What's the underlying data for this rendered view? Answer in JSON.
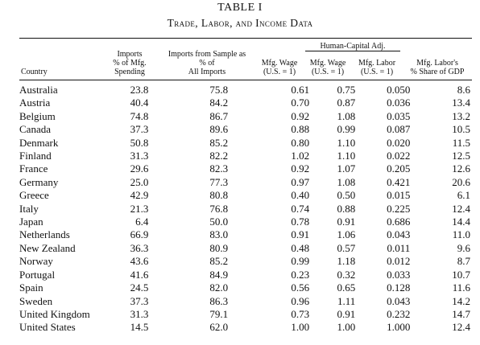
{
  "table": {
    "number": "TABLE I",
    "title": "Trade, Labor, and Income Data",
    "group_header": "Human-Capital Adj.",
    "headers": {
      "country": "Country",
      "imports_pct": [
        "Imports",
        "% of Mfg.",
        "Spending"
      ],
      "imports_sample": [
        "Imports from Sample as",
        "% of",
        "All Imports"
      ],
      "mfg_wage": [
        "Mfg. Wage",
        "(U.S. = 1)"
      ],
      "adj_wage": [
        "Mfg. Wage",
        "(U.S. = 1)"
      ],
      "adj_labor": [
        "Mfg. Labor",
        "(U.S. = 1)"
      ],
      "labor_share": [
        "Mfg. Labor's",
        "% Share of GDP"
      ]
    },
    "rows": [
      {
        "country": "Australia",
        "imports_pct": "23.8",
        "imports_sample": "75.8",
        "mfg_wage": "0.61",
        "adj_wage": "0.75",
        "adj_labor": "0.050",
        "labor_share": "8.6"
      },
      {
        "country": "Austria",
        "imports_pct": "40.4",
        "imports_sample": "84.2",
        "mfg_wage": "0.70",
        "adj_wage": "0.87",
        "adj_labor": "0.036",
        "labor_share": "13.4"
      },
      {
        "country": "Belgium",
        "imports_pct": "74.8",
        "imports_sample": "86.7",
        "mfg_wage": "0.92",
        "adj_wage": "1.08",
        "adj_labor": "0.035",
        "labor_share": "13.2"
      },
      {
        "country": "Canada",
        "imports_pct": "37.3",
        "imports_sample": "89.6",
        "mfg_wage": "0.88",
        "adj_wage": "0.99",
        "adj_labor": "0.087",
        "labor_share": "10.5"
      },
      {
        "country": "Denmark",
        "imports_pct": "50.8",
        "imports_sample": "85.2",
        "mfg_wage": "0.80",
        "adj_wage": "1.10",
        "adj_labor": "0.020",
        "labor_share": "11.5"
      },
      {
        "country": "Finland",
        "imports_pct": "31.3",
        "imports_sample": "82.2",
        "mfg_wage": "1.02",
        "adj_wage": "1.10",
        "adj_labor": "0.022",
        "labor_share": "12.5"
      },
      {
        "country": "France",
        "imports_pct": "29.6",
        "imports_sample": "82.3",
        "mfg_wage": "0.92",
        "adj_wage": "1.07",
        "adj_labor": "0.205",
        "labor_share": "12.6"
      },
      {
        "country": "Germany",
        "imports_pct": "25.0",
        "imports_sample": "77.3",
        "mfg_wage": "0.97",
        "adj_wage": "1.08",
        "adj_labor": "0.421",
        "labor_share": "20.6"
      },
      {
        "country": "Greece",
        "imports_pct": "42.9",
        "imports_sample": "80.8",
        "mfg_wage": "0.40",
        "adj_wage": "0.50",
        "adj_labor": "0.015",
        "labor_share": "6.1"
      },
      {
        "country": "Italy",
        "imports_pct": "21.3",
        "imports_sample": "76.8",
        "mfg_wage": "0.74",
        "adj_wage": "0.88",
        "adj_labor": "0.225",
        "labor_share": "12.4"
      },
      {
        "country": "Japan",
        "imports_pct": "6.4",
        "imports_sample": "50.0",
        "mfg_wage": "0.78",
        "adj_wage": "0.91",
        "adj_labor": "0.686",
        "labor_share": "14.4"
      },
      {
        "country": "Netherlands",
        "imports_pct": "66.9",
        "imports_sample": "83.0",
        "mfg_wage": "0.91",
        "adj_wage": "1.06",
        "adj_labor": "0.043",
        "labor_share": "11.0"
      },
      {
        "country": "New Zealand",
        "imports_pct": "36.3",
        "imports_sample": "80.9",
        "mfg_wage": "0.48",
        "adj_wage": "0.57",
        "adj_labor": "0.011",
        "labor_share": "9.6"
      },
      {
        "country": "Norway",
        "imports_pct": "43.6",
        "imports_sample": "85.2",
        "mfg_wage": "0.99",
        "adj_wage": "1.18",
        "adj_labor": "0.012",
        "labor_share": "8.7"
      },
      {
        "country": "Portugal",
        "imports_pct": "41.6",
        "imports_sample": "84.9",
        "mfg_wage": "0.23",
        "adj_wage": "0.32",
        "adj_labor": "0.033",
        "labor_share": "10.7"
      },
      {
        "country": "Spain",
        "imports_pct": "24.5",
        "imports_sample": "82.0",
        "mfg_wage": "0.56",
        "adj_wage": "0.65",
        "adj_labor": "0.128",
        "labor_share": "11.6"
      },
      {
        "country": "Sweden",
        "imports_pct": "37.3",
        "imports_sample": "86.3",
        "mfg_wage": "0.96",
        "adj_wage": "1.11",
        "adj_labor": "0.043",
        "labor_share": "14.2"
      },
      {
        "country": "United Kingdom",
        "imports_pct": "31.3",
        "imports_sample": "79.1",
        "mfg_wage": "0.73",
        "adj_wage": "0.91",
        "adj_labor": "0.232",
        "labor_share": "14.7"
      },
      {
        "country": "United States",
        "imports_pct": "14.5",
        "imports_sample": "62.0",
        "mfg_wage": "1.00",
        "adj_wage": "1.00",
        "adj_labor": "1.000",
        "labor_share": "12.4"
      }
    ]
  }
}
